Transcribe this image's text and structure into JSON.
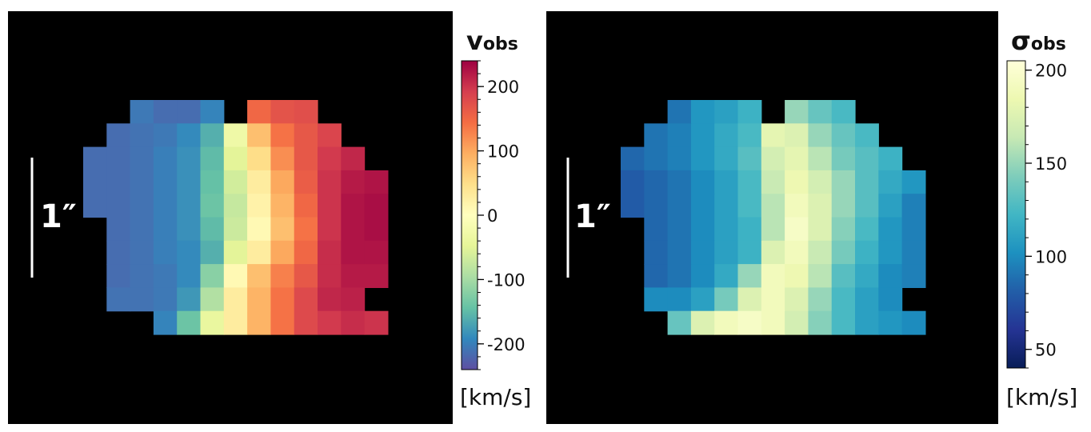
{
  "chart_data": [
    {
      "type": "heatmap",
      "title": "v",
      "title_sub": "obs",
      "unit_label": "[km/s]",
      "scale_label": "1″",
      "colormap": "Spectral_r",
      "vmin": -240,
      "vmax": 240,
      "cbar_ticks": [
        {
          "value": 200,
          "label": "200"
        },
        {
          "value": 100,
          "label": "100"
        },
        {
          "value": 0,
          "label": "0"
        },
        {
          "value": -100,
          "label": "-100"
        },
        {
          "value": -200,
          "label": "-200"
        }
      ],
      "grid": [
        [
          null,
          null,
          -205,
          -215,
          -215,
          -195,
          null,
          150,
          170,
          175,
          null,
          null,
          null
        ],
        [
          null,
          -215,
          -210,
          -205,
          -190,
          -160,
          -30,
          80,
          140,
          165,
          185,
          null,
          null
        ],
        [
          -215,
          -215,
          -210,
          -200,
          -185,
          -150,
          -50,
          50,
          120,
          165,
          195,
          210,
          null
        ],
        [
          -215,
          -215,
          -210,
          -200,
          -185,
          -145,
          -65,
          30,
          100,
          160,
          200,
          220,
          225
        ],
        [
          -215,
          -215,
          -210,
          -200,
          -185,
          -140,
          -75,
          20,
          90,
          150,
          200,
          225,
          230
        ],
        [
          null,
          -215,
          -210,
          -200,
          -185,
          -150,
          -70,
          10,
          80,
          140,
          200,
          225,
          230
        ],
        [
          null,
          -215,
          -210,
          -200,
          -190,
          -160,
          -50,
          30,
          100,
          150,
          205,
          225,
          225
        ],
        [
          null,
          -215,
          -210,
          -205,
          -190,
          -120,
          10,
          80,
          130,
          165,
          205,
          220,
          220
        ],
        [
          null,
          -210,
          -210,
          -205,
          -180,
          -90,
          30,
          90,
          140,
          180,
          210,
          215,
          null
        ],
        [
          null,
          null,
          null,
          -195,
          -140,
          -40,
          30,
          90,
          140,
          180,
          195,
          205,
          200
        ]
      ]
    },
    {
      "type": "heatmap",
      "title": "σ",
      "title_sub": "obs",
      "unit_label": "[km/s]",
      "scale_label": "1″",
      "colormap": "YlGnBu_r",
      "vmin": 40,
      "vmax": 205,
      "cbar_ticks": [
        {
          "value": 200,
          "label": "200"
        },
        {
          "value": 150,
          "label": "150"
        },
        {
          "value": 100,
          "label": "100"
        },
        {
          "value": 50,
          "label": "50"
        }
      ],
      "grid": [
        [
          null,
          null,
          90,
          105,
          110,
          120,
          null,
          150,
          135,
          125,
          null,
          null,
          null
        ],
        [
          null,
          90,
          95,
          105,
          115,
          125,
          180,
          175,
          150,
          135,
          125,
          null,
          null
        ],
        [
          85,
          90,
          95,
          105,
          115,
          130,
          170,
          180,
          160,
          140,
          130,
          120,
          null
        ],
        [
          80,
          85,
          90,
          100,
          110,
          125,
          165,
          185,
          170,
          150,
          130,
          115,
          105
        ],
        [
          80,
          85,
          90,
          100,
          110,
          125,
          160,
          190,
          175,
          150,
          130,
          110,
          95
        ],
        [
          null,
          85,
          90,
          100,
          110,
          120,
          160,
          195,
          175,
          145,
          125,
          105,
          95
        ],
        [
          null,
          85,
          90,
          100,
          110,
          120,
          175,
          190,
          165,
          140,
          120,
          105,
          95
        ],
        [
          null,
          85,
          90,
          100,
          115,
          150,
          190,
          185,
          160,
          130,
          115,
          100,
          95
        ],
        [
          null,
          100,
          100,
          110,
          140,
          175,
          190,
          175,
          150,
          125,
          110,
          100,
          null
        ],
        [
          null,
          null,
          135,
          175,
          190,
          195,
          190,
          170,
          145,
          125,
          110,
          105,
          100
        ]
      ]
    }
  ]
}
